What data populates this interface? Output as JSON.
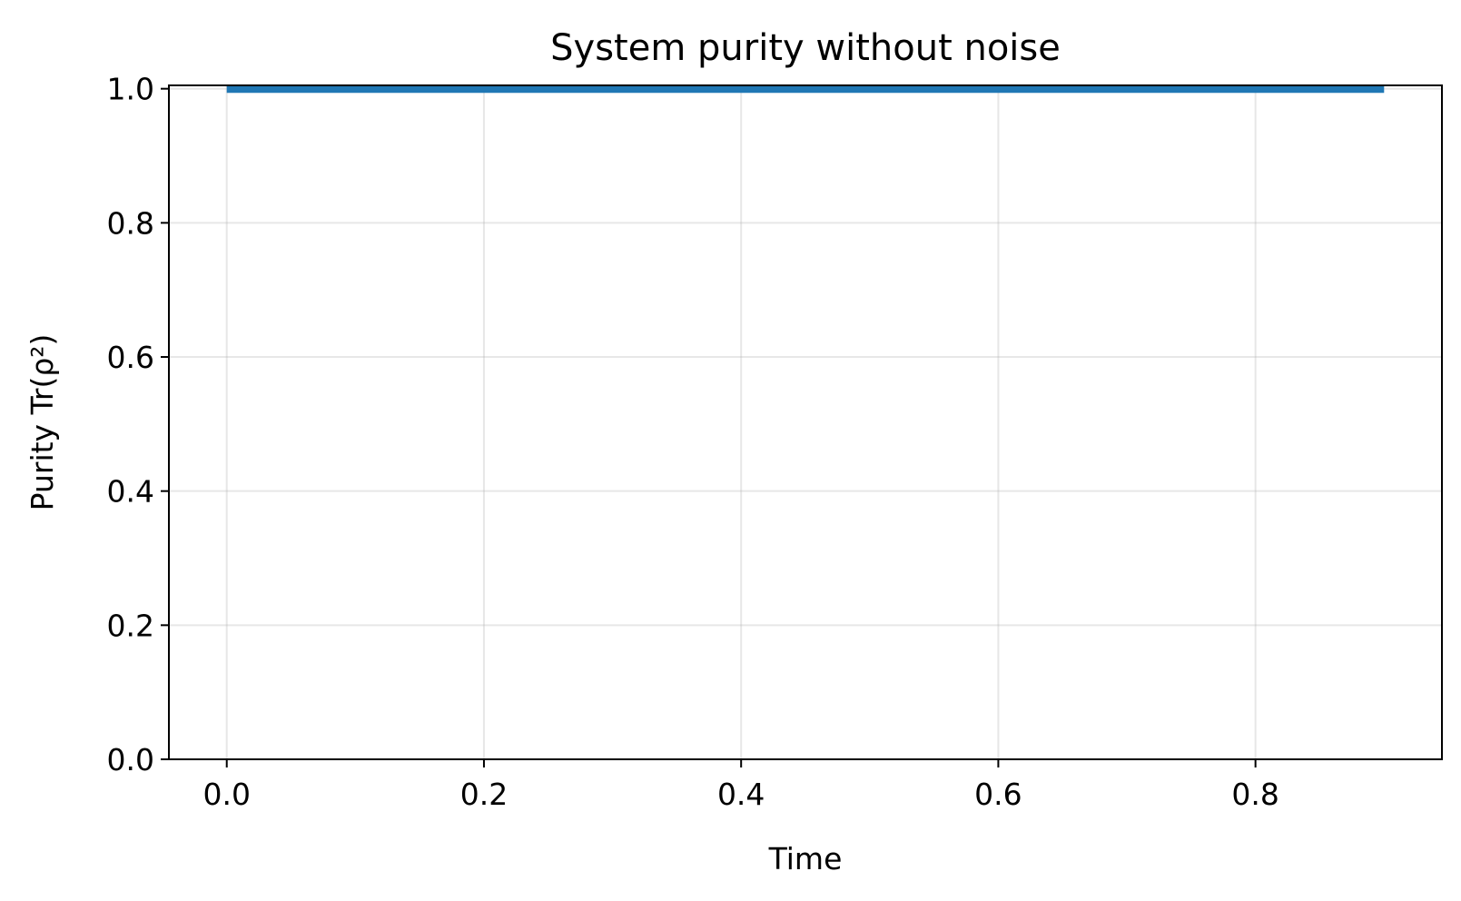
{
  "chart_data": {
    "type": "line",
    "title": "System purity without noise",
    "xlabel": "Time",
    "ylabel": "Purity Tr(ρ²)",
    "xlim": [
      -0.045,
      0.945
    ],
    "ylim": [
      0.0,
      1.005
    ],
    "xticks": [
      0.0,
      0.2,
      0.4,
      0.6,
      0.8
    ],
    "xtick_labels": [
      "0.0",
      "0.2",
      "0.4",
      "0.6",
      "0.8"
    ],
    "yticks": [
      0.0,
      0.2,
      0.4,
      0.6,
      0.8,
      1.0
    ],
    "ytick_labels": [
      "0.0",
      "0.2",
      "0.4",
      "0.6",
      "0.8",
      "1.0"
    ],
    "grid": true,
    "series": [
      {
        "color": "#1f77b4",
        "x": [
          0.0,
          0.1,
          0.2,
          0.3,
          0.4,
          0.5,
          0.6,
          0.7,
          0.8,
          0.9
        ],
        "y": [
          1.0,
          1.0,
          1.0,
          1.0,
          1.0,
          1.0,
          1.0,
          1.0,
          1.0,
          1.0
        ]
      }
    ]
  }
}
